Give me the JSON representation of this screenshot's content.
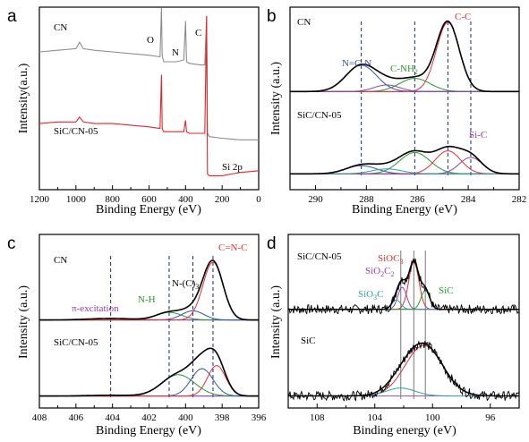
{
  "figure": {
    "panels": [
      {
        "id": "a",
        "panel_label": "a",
        "xlabel": "Binding Energy (eV)",
        "ylabel": "Intensity(a.u.)",
        "xticks": [
          "1200",
          "1000",
          "800",
          "600",
          "400",
          "200",
          "0"
        ],
        "samples": [
          "CN",
          "SiC/CN-05"
        ],
        "peak_labels": [
          "O",
          "N",
          "C",
          "Si 2p"
        ]
      },
      {
        "id": "b",
        "panel_label": "b",
        "xlabel": "Binding Energy (eV)",
        "ylabel": "Intensity (a.u.)",
        "xticks": [
          "290",
          "288",
          "286",
          "284",
          "282"
        ],
        "samples": [
          "CN",
          "SiC/CN-05"
        ],
        "peak_labels": [
          "N=C-N",
          "C-NH",
          "C-C",
          "Si-C"
        ],
        "peak_label_subscripts": {
          "C-NH": "2"
        }
      },
      {
        "id": "c",
        "panel_label": "c",
        "xlabel": "Binding Energy (eV)",
        "ylabel": "Intensity (a.u.)",
        "xticks": [
          "408",
          "406",
          "404",
          "402",
          "400",
          "398",
          "396"
        ],
        "samples": [
          "CN",
          "SiC/CN-05"
        ],
        "peak_labels": [
          "π-excitation",
          "N-H",
          "N-(C)",
          "C=N-C"
        ],
        "peak_label_subscripts": {
          "N-(C)": "3"
        }
      },
      {
        "id": "d",
        "panel_label": "d",
        "xlabel": "Binding energy (eV)",
        "ylabel": "Intensity (a.u.)",
        "xticks": [
          "108",
          "104",
          "100",
          "96"
        ],
        "samples": [
          "SiC/CN-05",
          "SiC"
        ],
        "peak_labels": [
          "SiOC",
          "SiO",
          "C",
          "SiO",
          "C",
          "SiC"
        ],
        "peak_label_subscripts": {
          "SiOC": "3",
          "SiO2C2": [
            "2",
            "2"
          ],
          "SiO3C": "3"
        }
      }
    ]
  },
  "chart_data": [
    {
      "type": "line",
      "panel": "a",
      "xlabel": "Binding Energy (eV)",
      "ylabel": "Intensity(a.u.)",
      "xlim": [
        1200,
        0
      ],
      "y_ticks_shown": false,
      "series": [
        {
          "name": "CN",
          "color": "#8c8c8c",
          "x": [
            1200,
            1100,
            1000,
            980,
            960,
            900,
            800,
            700,
            600,
            540,
            532,
            528,
            520,
            450,
            410,
            400,
            395,
            380,
            320,
            295,
            285,
            280,
            270,
            200,
            100,
            0
          ],
          "y": [
            0.78,
            0.79,
            0.8,
            0.84,
            0.8,
            0.79,
            0.78,
            0.77,
            0.76,
            0.75,
            1.05,
            0.76,
            0.72,
            0.72,
            0.73,
            0.97,
            0.72,
            0.71,
            0.7,
            0.7,
            1.0,
            0.28,
            0.26,
            0.25,
            0.24,
            0.24
          ]
        },
        {
          "name": "SiC/CN-05",
          "color": "#e3262a",
          "x": [
            1200,
            1100,
            1000,
            980,
            960,
            900,
            800,
            700,
            600,
            540,
            532,
            528,
            520,
            450,
            410,
            400,
            395,
            380,
            320,
            295,
            285,
            280,
            270,
            200,
            150,
            100,
            0
          ],
          "y": [
            0.34,
            0.35,
            0.35,
            0.38,
            0.35,
            0.34,
            0.34,
            0.33,
            0.32,
            0.31,
            0.64,
            0.31,
            0.29,
            0.29,
            0.29,
            0.36,
            0.29,
            0.28,
            0.28,
            0.28,
            1.0,
            0.03,
            0.02,
            0.02,
            0.03,
            0.04,
            0.05
          ]
        }
      ]
    },
    {
      "type": "line",
      "panel": "b",
      "xlabel": "Binding Energy (eV)",
      "ylabel": "Intensity (a.u.)",
      "xlim": [
        291,
        282
      ],
      "y_ticks_shown": false,
      "reference_lines_at": [
        288.2,
        286.1,
        284.8,
        283.9
      ],
      "series": [
        {
          "name": "CN",
          "role": "measured envelope",
          "offset": 0.5,
          "color": "#000000",
          "components": [
            {
              "label": "N=C-N",
              "center": 288.2,
              "height": 0.16,
              "sigma": 0.6,
              "color": "#3050b0"
            },
            {
              "label": "C-NH2",
              "center": 286.1,
              "height": 0.08,
              "sigma": 0.6,
              "color": "#2a9a2a"
            },
            {
              "label": "C-C",
              "center": 284.8,
              "height": 0.42,
              "sigma": 0.45,
              "color": "#e03030"
            },
            {
              "label": "",
              "center": 287.2,
              "height": 0.04,
              "sigma": 0.5,
              "color": "#9040b0"
            }
          ]
        },
        {
          "name": "SiC/CN-05",
          "role": "measured envelope",
          "offset": 0.0,
          "color": "#000000",
          "components": [
            {
              "label": "N=C-N",
              "center": 288.2,
              "height": 0.05,
              "sigma": 0.6,
              "color": "#3050b0"
            },
            {
              "label": "C-NH2",
              "center": 286.1,
              "height": 0.13,
              "sigma": 0.6,
              "color": "#2a9a2a"
            },
            {
              "label": "C-C",
              "center": 284.8,
              "height": 0.14,
              "sigma": 0.5,
              "color": "#e03030"
            },
            {
              "label": "Si-C",
              "center": 283.9,
              "height": 0.1,
              "sigma": 0.45,
              "color": "#9040b0"
            },
            {
              "label": "",
              "center": 287.2,
              "height": 0.03,
              "sigma": 0.6,
              "color": "#30a0b0"
            }
          ]
        }
      ]
    },
    {
      "type": "line",
      "panel": "c",
      "xlabel": "Binding Energy (eV)",
      "ylabel": "Intensity (a.u.)",
      "xlim": [
        408,
        396
      ],
      "y_ticks_shown": false,
      "reference_lines_at": [
        404.1,
        400.9,
        399.6,
        398.5
      ],
      "series": [
        {
          "name": "CN",
          "role": "measured envelope",
          "offset": 0.5,
          "color": "#000000",
          "components": [
            {
              "label": "π-excitation",
              "center": 404.1,
              "height": 0.01,
              "sigma": 1.2,
              "color": "#9040b0"
            },
            {
              "label": "N-H",
              "center": 400.9,
              "height": 0.05,
              "sigma": 0.7,
              "color": "#2a9a2a"
            },
            {
              "label": "N-(C)3",
              "center": 399.6,
              "height": 0.06,
              "sigma": 0.6,
              "color": "#3050b0"
            },
            {
              "label": "C=N-C",
              "center": 398.5,
              "height": 0.38,
              "sigma": 0.55,
              "color": "#e03030"
            }
          ]
        },
        {
          "name": "SiC/CN-05",
          "role": "measured envelope",
          "offset": 0.0,
          "color": "#000000",
          "components": [
            {
              "label": "π-excitation",
              "center": 404.1,
              "height": 0.005,
              "sigma": 1.2,
              "color": "#9040b0"
            },
            {
              "label": "N-H",
              "center": 400.4,
              "height": 0.14,
              "sigma": 0.9,
              "color": "#2a9a2a"
            },
            {
              "label": "N-(C)3",
              "center": 399.1,
              "height": 0.18,
              "sigma": 0.6,
              "color": "#3050b0"
            },
            {
              "label": "C=N-C",
              "center": 398.3,
              "height": 0.2,
              "sigma": 0.5,
              "color": "#e03030"
            }
          ]
        }
      ]
    },
    {
      "type": "line",
      "panel": "d",
      "xlabel": "Binding energy (eV)",
      "ylabel": "Intensity (a.u.)",
      "xlim": [
        110,
        94
      ],
      "y_ticks_shown": false,
      "reference_lines_at": [
        102.2,
        101.3,
        100.5
      ],
      "series": [
        {
          "name": "SiC/CN-05",
          "role": "measured spectrum (noisy)",
          "offset": 0.55,
          "color": "#000000",
          "components": [
            {
              "label": "SiOC3",
              "center": 101.3,
              "height": 0.3,
              "sigma": 0.35,
              "color": "#e03030"
            },
            {
              "label": "SiO2C2",
              "center": 102.1,
              "height": 0.14,
              "sigma": 0.3,
              "color": "#9040b0"
            },
            {
              "label": "SiO3C",
              "center": 102.5,
              "height": 0.06,
              "sigma": 0.3,
              "color": "#30a0b0"
            },
            {
              "label": "SiC",
              "center": 100.5,
              "height": 0.12,
              "sigma": 0.3,
              "color": "#2a9a2a"
            }
          ]
        },
        {
          "name": "SiC",
          "role": "measured spectrum (noisy)",
          "offset": 0.0,
          "color": "#000000",
          "components": [
            {
              "label": "",
              "center": 100.6,
              "height": 0.32,
              "sigma": 1.3,
              "color": "#e03030"
            },
            {
              "label": "",
              "center": 102.2,
              "height": 0.05,
              "sigma": 1.0,
              "color": "#30a0b0"
            }
          ]
        }
      ]
    }
  ],
  "colors": {
    "axis": "#000000",
    "cn_survey": "#8c8c8c",
    "composite_survey": "#e3262a",
    "fit_blue": "#3050b0",
    "fit_green": "#2a9a2a",
    "fit_red": "#e03030",
    "fit_purple": "#9040b0",
    "fit_cyan": "#30a0b0",
    "baseline": "#9b59b6",
    "refline": "#1a2a6b"
  }
}
